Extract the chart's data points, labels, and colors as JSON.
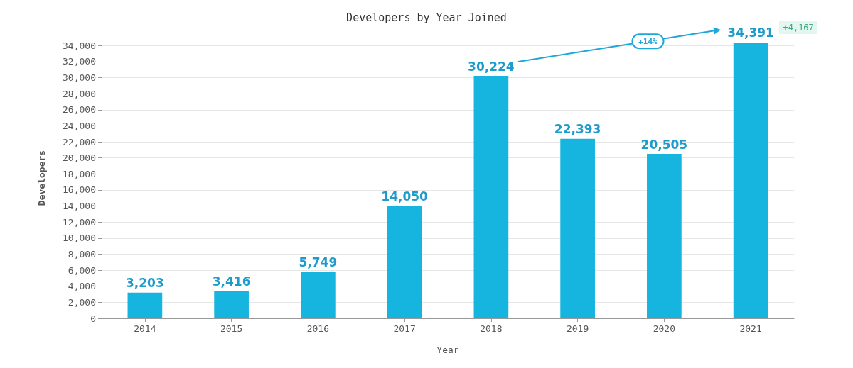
{
  "chart_data": {
    "type": "bar",
    "title": "Developers by Year Joined",
    "xlabel": "Year",
    "ylabel": "Developers",
    "categories": [
      "2014",
      "2015",
      "2016",
      "2017",
      "2018",
      "2019",
      "2020",
      "2021"
    ],
    "values": [
      3203,
      3416,
      5749,
      14050,
      30224,
      22393,
      20505,
      34391
    ],
    "color": "#16b5e0",
    "ylim": [
      0,
      35000
    ],
    "yticks": [
      {
        "value": 0,
        "label": "0"
      },
      {
        "value": 2000,
        "label": "2,000"
      },
      {
        "value": 4000,
        "label": "4,000"
      },
      {
        "value": 6000,
        "label": "6,000"
      },
      {
        "value": 8000,
        "label": "8,000"
      },
      {
        "value": 10000,
        "label": "10,000"
      },
      {
        "value": 12000,
        "label": "12,000"
      },
      {
        "value": 14000,
        "label": "14,000"
      },
      {
        "value": 16000,
        "label": "16,000"
      },
      {
        "value": 18000,
        "label": "18,000"
      },
      {
        "value": 20000,
        "label": "20,000"
      },
      {
        "value": 22000,
        "label": "22,000"
      },
      {
        "value": 24000,
        "label": "24,000"
      },
      {
        "value": 26000,
        "label": "26,000"
      },
      {
        "value": 28000,
        "label": "28,000"
      },
      {
        "value": 30000,
        "label": "30,000"
      },
      {
        "value": 32000,
        "label": "32,000"
      },
      {
        "value": 34000,
        "label": "34,000"
      }
    ],
    "value_labels": [
      "3,203",
      "3,416",
      "5,749",
      "14,050",
      "30,224",
      "22,393",
      "20,505",
      "34,391"
    ],
    "annotations": [
      "+14%",
      "+4,167"
    ],
    "grid": "y"
  }
}
